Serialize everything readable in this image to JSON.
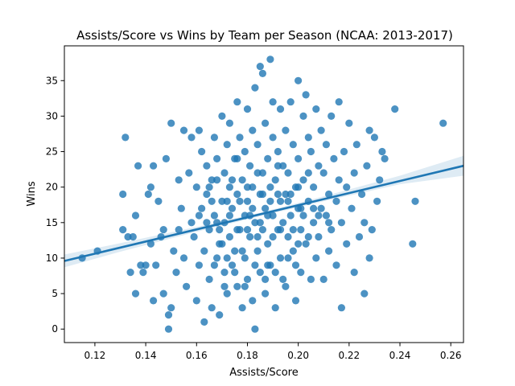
{
  "chart_data": {
    "type": "scatter",
    "title": "Assists/Score vs Wins by Team per Season (NCAA: 2013-2017)",
    "xlabel": "Assists/Score",
    "ylabel": "Wins",
    "xlim": [
      0.108,
      0.265
    ],
    "ylim": [
      -1.9,
      39.9
    ],
    "xticks": [
      0.12,
      0.14,
      0.16,
      0.18,
      0.2,
      0.22,
      0.24,
      0.26
    ],
    "yticks": [
      0,
      5,
      10,
      15,
      20,
      25,
      30,
      35
    ],
    "xtick_labels": [
      "0.12",
      "0.14",
      "0.16",
      "0.18",
      "0.20",
      "0.22",
      "0.24",
      "0.26"
    ],
    "ytick_labels": [
      "0",
      "5",
      "10",
      "15",
      "20",
      "25",
      "30",
      "35"
    ],
    "grid": false,
    "colors": {
      "points": "#1f77b4",
      "line": "#1f77b4",
      "band": "#1f77b4"
    },
    "regression": {
      "x": [
        0.108,
        0.265
      ],
      "y": [
        9.6,
        23.0
      ]
    },
    "confidence_band": {
      "x": [
        0.108,
        0.13,
        0.16,
        0.185,
        0.21,
        0.24,
        0.265
      ],
      "lower": [
        8.7,
        10.9,
        13.7,
        15.9,
        18.0,
        20.4,
        21.6
      ],
      "upper": [
        10.5,
        12.1,
        14.4,
        16.4,
        18.7,
        21.6,
        24.4
      ]
    },
    "points": [
      [
        0.115,
        10
      ],
      [
        0.121,
        11
      ],
      [
        0.131,
        19
      ],
      [
        0.132,
        27
      ],
      [
        0.131,
        14
      ],
      [
        0.133,
        13
      ],
      [
        0.134,
        8
      ],
      [
        0.135,
        13
      ],
      [
        0.136,
        5
      ],
      [
        0.136,
        16
      ],
      [
        0.137,
        23
      ],
      [
        0.138,
        9
      ],
      [
        0.139,
        8
      ],
      [
        0.14,
        9
      ],
      [
        0.141,
        19
      ],
      [
        0.142,
        20
      ],
      [
        0.142,
        12
      ],
      [
        0.143,
        23
      ],
      [
        0.143,
        4
      ],
      [
        0.144,
        9
      ],
      [
        0.145,
        18
      ],
      [
        0.146,
        13
      ],
      [
        0.147,
        5
      ],
      [
        0.147,
        14
      ],
      [
        0.148,
        24
      ],
      [
        0.149,
        2
      ],
      [
        0.149,
        0
      ],
      [
        0.15,
        3
      ],
      [
        0.15,
        29
      ],
      [
        0.151,
        11
      ],
      [
        0.152,
        8
      ],
      [
        0.153,
        14
      ],
      [
        0.153,
        21
      ],
      [
        0.154,
        17
      ],
      [
        0.155,
        28
      ],
      [
        0.155,
        10
      ],
      [
        0.156,
        6
      ],
      [
        0.157,
        22
      ],
      [
        0.158,
        27
      ],
      [
        0.158,
        15
      ],
      [
        0.159,
        13
      ],
      [
        0.16,
        20
      ],
      [
        0.16,
        4
      ],
      [
        0.161,
        28
      ],
      [
        0.161,
        9
      ],
      [
        0.162,
        25
      ],
      [
        0.162,
        17
      ],
      [
        0.163,
        11
      ],
      [
        0.163,
        1
      ],
      [
        0.164,
        19
      ],
      [
        0.164,
        23
      ],
      [
        0.165,
        7
      ],
      [
        0.165,
        14
      ],
      [
        0.166,
        21
      ],
      [
        0.166,
        3
      ],
      [
        0.167,
        27
      ],
      [
        0.167,
        16
      ],
      [
        0.168,
        10
      ],
      [
        0.168,
        24
      ],
      [
        0.169,
        12
      ],
      [
        0.169,
        2
      ],
      [
        0.17,
        18
      ],
      [
        0.17,
        30
      ],
      [
        0.171,
        8
      ],
      [
        0.171,
        22
      ],
      [
        0.171,
        15
      ],
      [
        0.172,
        26
      ],
      [
        0.172,
        5
      ],
      [
        0.173,
        20
      ],
      [
        0.173,
        13
      ],
      [
        0.173,
        29
      ],
      [
        0.174,
        9
      ],
      [
        0.174,
        17
      ],
      [
        0.175,
        24
      ],
      [
        0.175,
        11
      ],
      [
        0.176,
        32
      ],
      [
        0.176,
        19
      ],
      [
        0.176,
        6
      ],
      [
        0.177,
        14
      ],
      [
        0.177,
        27
      ],
      [
        0.178,
        21
      ],
      [
        0.178,
        3
      ],
      [
        0.179,
        16
      ],
      [
        0.179,
        25
      ],
      [
        0.179,
        10
      ],
      [
        0.18,
        31
      ],
      [
        0.18,
        18
      ],
      [
        0.18,
        7
      ],
      [
        0.181,
        23
      ],
      [
        0.181,
        13
      ],
      [
        0.182,
        28
      ],
      [
        0.182,
        20
      ],
      [
        0.182,
        4
      ],
      [
        0.183,
        15
      ],
      [
        0.183,
        34
      ],
      [
        0.183,
        0
      ],
      [
        0.184,
        26
      ],
      [
        0.184,
        11
      ],
      [
        0.185,
        37
      ],
      [
        0.185,
        19
      ],
      [
        0.185,
        8
      ],
      [
        0.186,
        22
      ],
      [
        0.186,
        14
      ],
      [
        0.186,
        36
      ],
      [
        0.187,
        29
      ],
      [
        0.187,
        17
      ],
      [
        0.187,
        5
      ],
      [
        0.188,
        24
      ],
      [
        0.188,
        12
      ],
      [
        0.189,
        38
      ],
      [
        0.189,
        20
      ],
      [
        0.189,
        9
      ],
      [
        0.19,
        32
      ],
      [
        0.19,
        16
      ],
      [
        0.19,
        27
      ],
      [
        0.191,
        21
      ],
      [
        0.191,
        3
      ],
      [
        0.192,
        14
      ],
      [
        0.192,
        25
      ],
      [
        0.193,
        18
      ],
      [
        0.193,
        31
      ],
      [
        0.193,
        10
      ],
      [
        0.194,
        23
      ],
      [
        0.194,
        7
      ],
      [
        0.195,
        19
      ],
      [
        0.195,
        28
      ],
      [
        0.196,
        13
      ],
      [
        0.196,
        22
      ],
      [
        0.197,
        16
      ],
      [
        0.197,
        32
      ],
      [
        0.198,
        26
      ],
      [
        0.198,
        11
      ],
      [
        0.199,
        20
      ],
      [
        0.199,
        4
      ],
      [
        0.2,
        35
      ],
      [
        0.2,
        17
      ],
      [
        0.2,
        24
      ],
      [
        0.201,
        8
      ],
      [
        0.201,
        14
      ],
      [
        0.202,
        30
      ],
      [
        0.202,
        21
      ],
      [
        0.203,
        33
      ],
      [
        0.203,
        12
      ],
      [
        0.204,
        27
      ],
      [
        0.204,
        18
      ],
      [
        0.205,
        7
      ],
      [
        0.205,
        25
      ],
      [
        0.206,
        15
      ],
      [
        0.206,
        20
      ],
      [
        0.207,
        31
      ],
      [
        0.207,
        10
      ],
      [
        0.208,
        23
      ],
      [
        0.208,
        13
      ],
      [
        0.209,
        28
      ],
      [
        0.209,
        17
      ],
      [
        0.21,
        22
      ],
      [
        0.21,
        7
      ],
      [
        0.211,
        16
      ],
      [
        0.211,
        26
      ],
      [
        0.212,
        19
      ],
      [
        0.212,
        11
      ],
      [
        0.213,
        30
      ],
      [
        0.213,
        14
      ],
      [
        0.214,
        24
      ],
      [
        0.215,
        18
      ],
      [
        0.215,
        9
      ],
      [
        0.216,
        21
      ],
      [
        0.216,
        32
      ],
      [
        0.217,
        3
      ],
      [
        0.217,
        15
      ],
      [
        0.218,
        25
      ],
      [
        0.219,
        12
      ],
      [
        0.219,
        20
      ],
      [
        0.22,
        29
      ],
      [
        0.221,
        17
      ],
      [
        0.222,
        22
      ],
      [
        0.222,
        8
      ],
      [
        0.223,
        26
      ],
      [
        0.224,
        13
      ],
      [
        0.225,
        19
      ],
      [
        0.226,
        5
      ],
      [
        0.226,
        15
      ],
      [
        0.227,
        23
      ],
      [
        0.228,
        10
      ],
      [
        0.228,
        28
      ],
      [
        0.229,
        14
      ],
      [
        0.23,
        27
      ],
      [
        0.231,
        18
      ],
      [
        0.232,
        21
      ],
      [
        0.233,
        25
      ],
      [
        0.234,
        24
      ],
      [
        0.238,
        31
      ],
      [
        0.245,
        12
      ],
      [
        0.246,
        18
      ],
      [
        0.257,
        29
      ],
      [
        0.166,
        18
      ],
      [
        0.168,
        15
      ],
      [
        0.17,
        12
      ],
      [
        0.172,
        18
      ],
      [
        0.174,
        21
      ],
      [
        0.176,
        14
      ],
      [
        0.178,
        11
      ],
      [
        0.18,
        20
      ],
      [
        0.182,
        17
      ],
      [
        0.184,
        13
      ],
      [
        0.186,
        19
      ],
      [
        0.188,
        16
      ],
      [
        0.19,
        13
      ],
      [
        0.192,
        19
      ],
      [
        0.194,
        15
      ],
      [
        0.196,
        18
      ],
      [
        0.198,
        14
      ],
      [
        0.2,
        20
      ],
      [
        0.202,
        16
      ],
      [
        0.204,
        13
      ],
      [
        0.206,
        17
      ],
      [
        0.167,
        9
      ],
      [
        0.171,
        6
      ],
      [
        0.175,
        8
      ],
      [
        0.179,
        6
      ],
      [
        0.183,
        9
      ],
      [
        0.187,
        7
      ],
      [
        0.191,
        8
      ],
      [
        0.195,
        6
      ],
      [
        0.199,
        9
      ],
      [
        0.164,
        15
      ],
      [
        0.168,
        21
      ],
      [
        0.172,
        10
      ],
      [
        0.176,
        24
      ],
      [
        0.18,
        14
      ],
      [
        0.184,
        22
      ],
      [
        0.188,
        9
      ],
      [
        0.192,
        23
      ],
      [
        0.196,
        10
      ],
      [
        0.2,
        12
      ],
      [
        0.204,
        22
      ],
      [
        0.208,
        16
      ],
      [
        0.212,
        15
      ],
      [
        0.177,
        18
      ],
      [
        0.181,
        16
      ],
      [
        0.185,
        15
      ],
      [
        0.189,
        18
      ],
      [
        0.193,
        14
      ],
      [
        0.197,
        19
      ],
      [
        0.201,
        17
      ],
      [
        0.173,
        16
      ],
      [
        0.169,
        14
      ],
      [
        0.165,
        20
      ],
      [
        0.161,
        16
      ]
    ]
  }
}
